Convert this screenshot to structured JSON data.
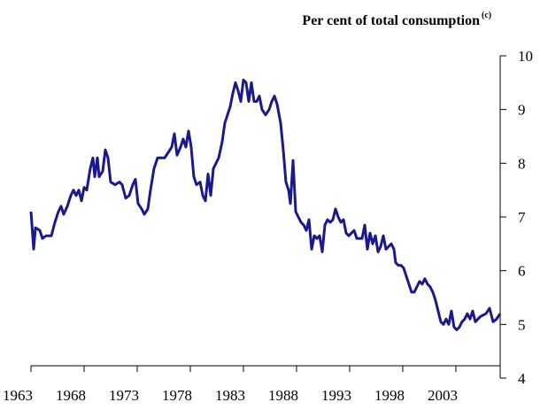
{
  "chart_data": {
    "type": "line",
    "title": "Per cent of total consumption",
    "title_note": "(c)",
    "x": [
      1963,
      1963.25,
      1963.42,
      1963.83,
      1964.08,
      1964.42,
      1964.92,
      1965.25,
      1965.58,
      1965.83,
      1966.08,
      1966.42,
      1966.75,
      1967,
      1967.25,
      1967.5,
      1967.75,
      1968,
      1968.25,
      1968.58,
      1968.83,
      1969,
      1969.25,
      1969.42,
      1969.75,
      1970,
      1970.25,
      1970.5,
      1970.92,
      1971.33,
      1971.58,
      1971.92,
      1972.25,
      1972.58,
      1972.83,
      1973.08,
      1973.42,
      1973.67,
      1974,
      1974.25,
      1974.58,
      1974.92,
      1975.25,
      1975.58,
      1975.92,
      1976.25,
      1976.5,
      1976.75,
      1977.08,
      1977.33,
      1977.58,
      1977.83,
      1978.08,
      1978.33,
      1978.58,
      1978.92,
      1979.17,
      1979.42,
      1979.67,
      1979.92,
      1980.17,
      1980.42,
      1980.67,
      1981,
      1981.25,
      1981.5,
      1981.75,
      1982,
      1982.25,
      1982.5,
      1982.75,
      1983,
      1983.25,
      1983.5,
      1983.75,
      1984,
      1984.25,
      1984.5,
      1984.75,
      1985.08,
      1985.42,
      1985.67,
      1985.92,
      1986.17,
      1986.5,
      1986.75,
      1987,
      1987.25,
      1987.42,
      1987.67,
      1987.92,
      1988.17,
      1988.42,
      1988.67,
      1988.92,
      1989.17,
      1989.42,
      1989.67,
      1989.92,
      1990.17,
      1990.42,
      1990.67,
      1990.92,
      1991.17,
      1991.42,
      1991.67,
      1991.92,
      1992.17,
      1992.42,
      1992.67,
      1992.92,
      1993.17,
      1993.42,
      1993.67,
      1993.92,
      1994.17,
      1994.42,
      1994.67,
      1994.92,
      1995.17,
      1995.42,
      1995.67,
      1995.92,
      1996.17,
      1996.42,
      1996.67,
      1996.92,
      1997.17,
      1997.33,
      1997.58,
      1997.83,
      1998.08,
      1998.33,
      1998.58,
      1998.83,
      1999.08,
      1999.33,
      1999.58,
      1999.83,
      2000.08,
      2000.33,
      2000.58,
      2000.83,
      2001.08,
      2001.33,
      2001.58,
      2001.83,
      2002.08,
      2002.33,
      2002.58,
      2002.83,
      2003.08,
      2003.33,
      2003.58,
      2003.83,
      2004.08,
      2004.33,
      2004.58,
      2004.83,
      2005.08,
      2005.33,
      2005.83,
      2006.17,
      2006.5,
      2006.83,
      2007.17
    ],
    "series": [
      {
        "color": "#1a1a8c",
        "values": [
          7.1,
          6.4,
          6.8,
          6.75,
          6.6,
          6.65,
          6.65,
          6.9,
          7.1,
          7.2,
          7.05,
          7.2,
          7.4,
          7.5,
          7.4,
          7.5,
          7.3,
          7.55,
          7.5,
          7.9,
          8.1,
          7.75,
          8.1,
          7.75,
          7.85,
          8.25,
          8.1,
          7.65,
          7.6,
          7.65,
          7.6,
          7.35,
          7.4,
          7.6,
          7.7,
          7.25,
          7.15,
          7.05,
          7.15,
          7.5,
          7.9,
          8.1,
          8.1,
          8.1,
          8.2,
          8.3,
          8.55,
          8.15,
          8.3,
          8.45,
          8.3,
          8.6,
          8.3,
          7.75,
          7.6,
          7.65,
          7.4,
          7.3,
          7.8,
          7.4,
          7.9,
          8.0,
          8.1,
          8.4,
          8.75,
          8.9,
          9.05,
          9.3,
          9.5,
          9.35,
          9.15,
          9.55,
          9.5,
          9.15,
          9.5,
          9.15,
          9.15,
          9.25,
          9.0,
          8.9,
          9.0,
          9.15,
          9.25,
          9.1,
          8.75,
          8.25,
          7.65,
          7.5,
          7.25,
          8.05,
          7.1,
          7.0,
          6.9,
          6.85,
          6.75,
          6.95,
          6.4,
          6.65,
          6.6,
          6.65,
          6.35,
          6.85,
          6.95,
          6.9,
          6.95,
          7.15,
          7.0,
          6.9,
          6.95,
          6.7,
          6.65,
          6.7,
          6.75,
          6.6,
          6.6,
          6.6,
          6.85,
          6.4,
          6.7,
          6.5,
          6.65,
          6.35,
          6.45,
          6.65,
          6.4,
          6.45,
          6.5,
          6.4,
          6.15,
          6.1,
          6.1,
          6.05,
          5.9,
          5.75,
          5.6,
          5.6,
          5.7,
          5.8,
          5.75,
          5.85,
          5.75,
          5.7,
          5.6,
          5.45,
          5.25,
          5.05,
          5.0,
          5.1,
          5.0,
          5.25,
          4.95,
          4.9,
          4.95,
          5.05,
          5.1,
          5.2,
          5.1,
          5.25,
          5.05,
          5.1,
          5.15,
          5.2,
          5.3,
          5.05,
          5.1,
          5.2
        ]
      }
    ],
    "xlim": [
      1963,
      2007.17
    ],
    "xticks": [
      1963,
      1968,
      1973,
      1978,
      1983,
      1988,
      1993,
      1998,
      2003
    ],
    "ylim": [
      4,
      10
    ],
    "yticks": [
      4,
      5,
      6,
      7,
      8,
      9,
      10
    ],
    "grid": false
  }
}
